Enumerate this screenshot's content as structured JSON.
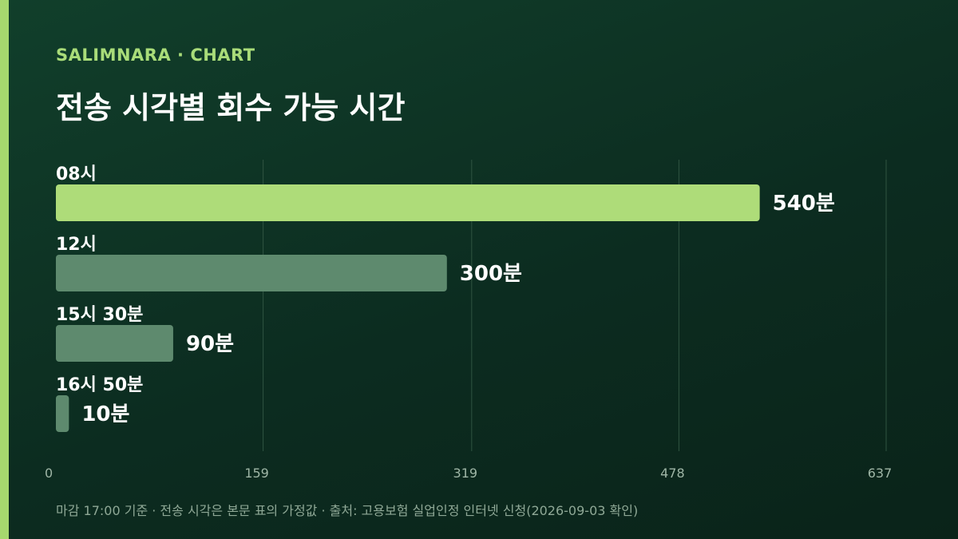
{
  "brand": "SALIMNARA · CHART",
  "title": "전송 시각별 회수 가능 시간",
  "footer": "마감 17:00 기준 · 전송 시각은 본문 표의 가정값 · 출처: 고용보험 실업인정 인터넷 신청(2026-09-03 확인)",
  "colors": {
    "background": "#0d3022",
    "accent": "#a6d86e",
    "highlight_bar": "#aedc79",
    "other_bar": "#5e8a6e",
    "gridline": "#2f5441",
    "tick_label": "#9fb6a6",
    "value_label": "#ffffff"
  },
  "chart_data": {
    "type": "bar",
    "orientation": "horizontal",
    "categories": [
      "08시",
      "12시",
      "15시 30분",
      "16시 50분"
    ],
    "values": [
      540,
      300,
      90,
      10
    ],
    "value_labels": [
      "540분",
      "300분",
      "90분",
      "10분"
    ],
    "highlight_index": 0,
    "xlim": [
      0,
      637
    ],
    "x_ticks": [
      0,
      159,
      319,
      478,
      637
    ],
    "x_tick_labels": [
      "0",
      "159",
      "319",
      "478",
      "637"
    ],
    "grid": true
  }
}
